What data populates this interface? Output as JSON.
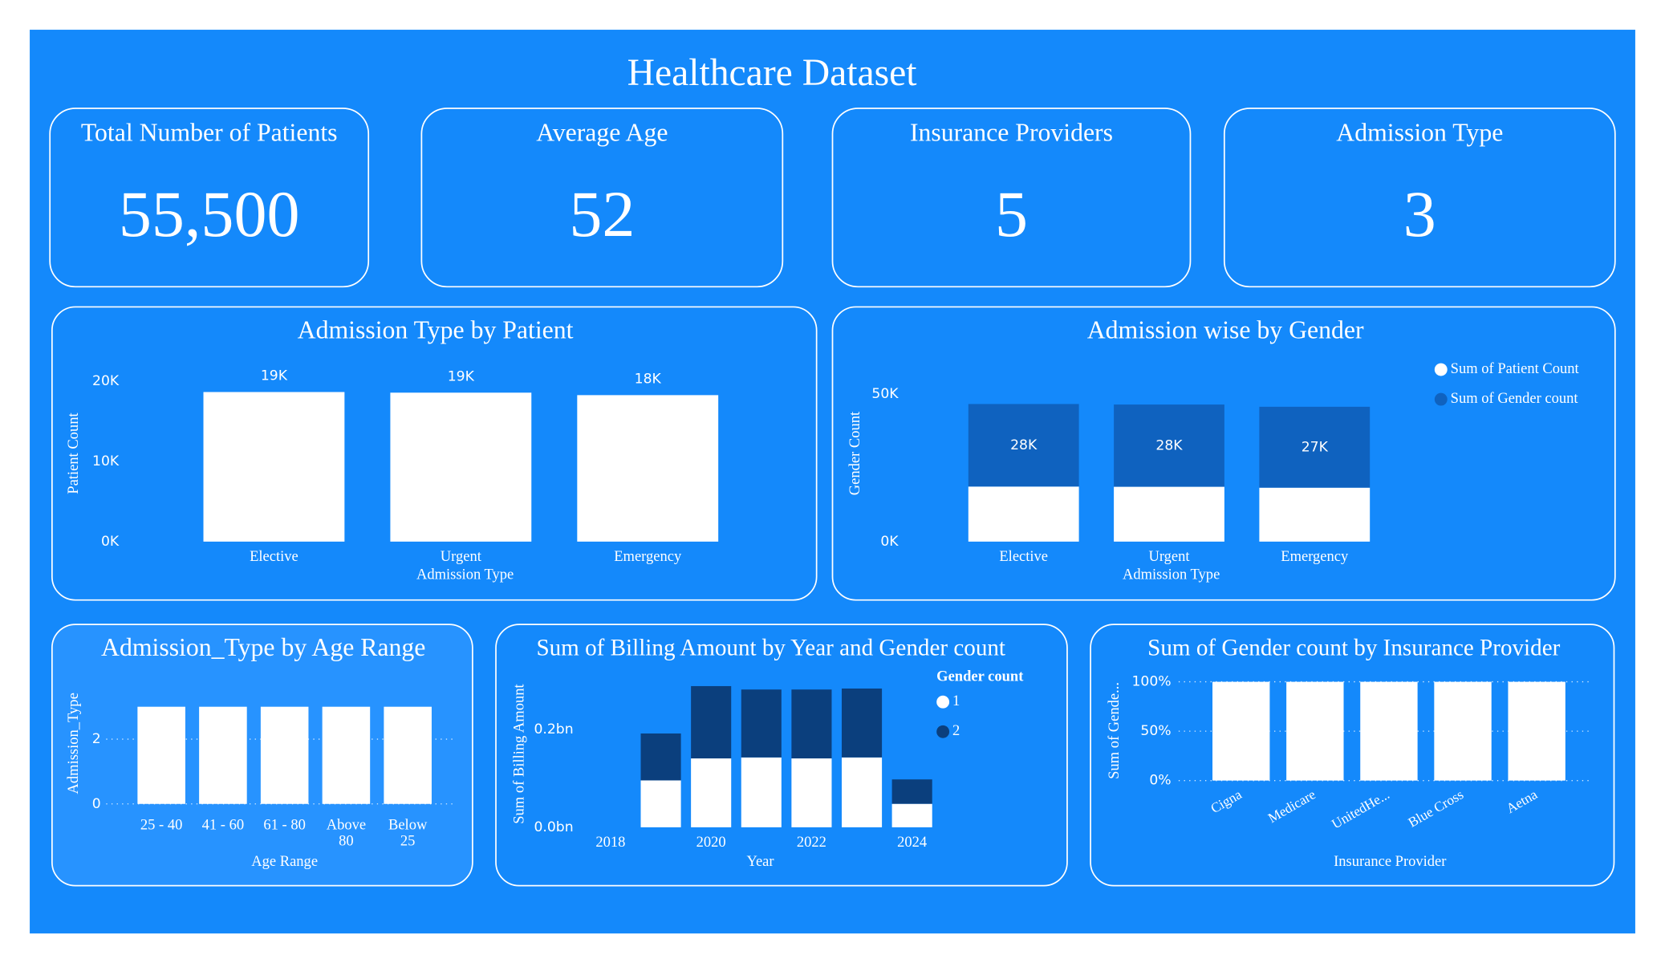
{
  "title": "Healthcare Dataset",
  "cards": [
    {
      "title": "Total Number of Patients",
      "value": "55,500"
    },
    {
      "title": "Average Age",
      "value": "52"
    },
    {
      "title": "Insurance Providers",
      "value": "5"
    },
    {
      "title": "Admission Type",
      "value": "3"
    }
  ],
  "chart_data": [
    {
      "type": "bar",
      "title": "Admission Type by Patient",
      "x_label": "Admission Type",
      "y_label": "Patient Count",
      "categories": [
        "Elective",
        "Urgent",
        "Emergency"
      ],
      "values": [
        18655,
        18576,
        18269
      ],
      "value_labels": [
        "19K",
        "19K",
        "18K"
      ],
      "color": "#ffffff",
      "ylim": [
        0,
        20000
      ],
      "yticks": [
        {
          "value": 0,
          "label": "0K"
        },
        {
          "value": 10000,
          "label": "10K"
        },
        {
          "value": 20000,
          "label": "20K"
        }
      ],
      "grid": false
    },
    {
      "type": "bar",
      "stacked": true,
      "title": "Admission wise by Gender",
      "x_label": "Admission Type",
      "y_label": "Gender Count",
      "categories": [
        "Elective",
        "Urgent",
        "Emergency"
      ],
      "series": [
        {
          "name": "Sum of Patient Count",
          "color": "#ffffff",
          "values": [
            18655,
            18576,
            18269
          ]
        },
        {
          "name": "Sum of Gender count",
          "color": "#0f62bf",
          "values": [
            27950,
            27850,
            27400
          ],
          "value_labels": [
            "28K",
            "28K",
            "27K"
          ]
        }
      ],
      "ylim": [
        0,
        50000
      ],
      "yticks": [
        {
          "value": 0,
          "label": "0K"
        },
        {
          "value": 50000,
          "label": "50K"
        }
      ],
      "grid": false,
      "legend": true
    },
    {
      "type": "bar",
      "title": "Admission_Type by Age Range",
      "x_label": "Age Range",
      "y_label": "Admission_Type",
      "categories": [
        "25 - 40",
        "41 - 60",
        "61 - 80",
        "Above 80",
        "Below 25"
      ],
      "values": [
        3,
        3,
        3,
        3,
        3
      ],
      "color": "#ffffff",
      "ylim": [
        0,
        4
      ],
      "yticks": [
        0,
        2
      ],
      "grid": true
    },
    {
      "type": "bar",
      "stacked": true,
      "title": "Sum of Billing Amount by Year and Gender count",
      "x_label": "Year",
      "y_label": "Sum of Billing Amount",
      "x": [
        2019,
        2020,
        2021,
        2022,
        2023,
        2024
      ],
      "xlim": [
        2017.5,
        2024.5
      ],
      "xticks": [
        2018,
        2020,
        2022,
        2024
      ],
      "series": [
        {
          "name": "1",
          "color": "#ffffff",
          "values": [
            96000000,
            141000000,
            143000000,
            141000000,
            143000000,
            48000000
          ]
        },
        {
          "name": "2",
          "color": "#0b3f7d",
          "values": [
            96000000,
            148000000,
            139000000,
            141000000,
            141000000,
            50000000
          ]
        }
      ],
      "ylim": [
        0,
        300000000
      ],
      "yticks": [
        {
          "value": 0,
          "label": "0.0bn"
        },
        {
          "value": 200000000,
          "label": "0.2bn"
        }
      ],
      "grid": false,
      "legend": true,
      "legend_title": "Gender count"
    },
    {
      "type": "bar",
      "title": "Sum of Gender count by Insurance Provider",
      "x_label": "Insurance Provider",
      "y_label": "Sum of Gende...",
      "categories": [
        "Cigna",
        "Medicare",
        "UnitedHe...",
        "Blue Cross",
        "Aetna"
      ],
      "values": [
        100,
        100,
        100,
        100,
        100
      ],
      "color": "#ffffff",
      "ylim": [
        0,
        100
      ],
      "yticks": [
        {
          "value": 0,
          "label": "0%"
        },
        {
          "value": 50,
          "label": "50%"
        },
        {
          "value": 100,
          "label": "100%"
        }
      ],
      "grid": true
    }
  ]
}
